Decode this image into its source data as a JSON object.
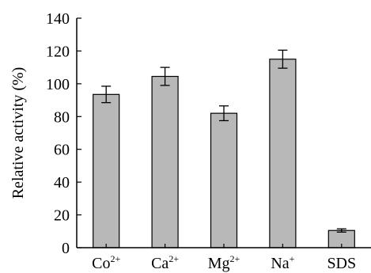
{
  "chart_data": {
    "type": "bar",
    "ylabel": "Relative activity (%)",
    "xlabel": "",
    "ylim": [
      0,
      140
    ],
    "yticks": [
      0,
      20,
      40,
      60,
      80,
      100,
      120,
      140
    ],
    "categories": [
      {
        "base": "Co",
        "sup": "2+"
      },
      {
        "base": "Ca",
        "sup": "2+"
      },
      {
        "base": "Mg",
        "sup": "2+"
      },
      {
        "base": "Na",
        "sup": "+"
      },
      {
        "base": "SDS",
        "sup": ""
      }
    ],
    "values": [
      93.5,
      104.5,
      82,
      115,
      10.5
    ],
    "errors": [
      5,
      5.5,
      4.5,
      5.5,
      1
    ],
    "bar_color": "#b8b8b8",
    "grid": false
  }
}
